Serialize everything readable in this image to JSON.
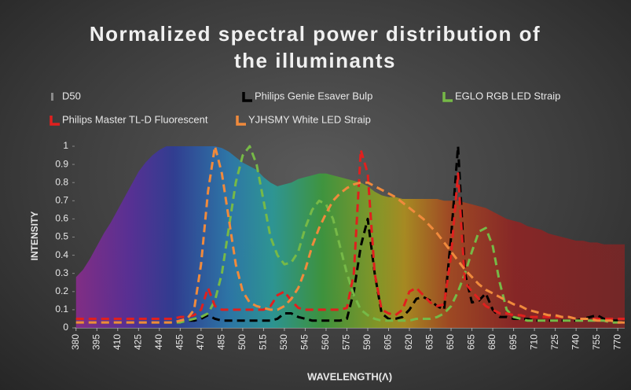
{
  "chart_data": {
    "type": "line",
    "title": "Normalized spectral power distribution of the illuminants",
    "xlabel": "WAVELENGTH(Λ)",
    "ylabel": "INTENSITY",
    "x": [
      380,
      385,
      390,
      395,
      400,
      405,
      410,
      415,
      420,
      425,
      430,
      435,
      440,
      445,
      450,
      455,
      460,
      465,
      470,
      475,
      480,
      485,
      490,
      495,
      500,
      505,
      510,
      515,
      520,
      525,
      530,
      535,
      540,
      545,
      550,
      555,
      560,
      565,
      570,
      575,
      580,
      585,
      590,
      595,
      600,
      605,
      610,
      615,
      620,
      625,
      630,
      635,
      640,
      645,
      650,
      655,
      660,
      665,
      670,
      675,
      680,
      685,
      690,
      695,
      700,
      705,
      710,
      715,
      720,
      725,
      730,
      735,
      740,
      745,
      750,
      755,
      760,
      765,
      770,
      775
    ],
    "xlim": [
      379,
      775
    ],
    "xticks": [
      380,
      395,
      410,
      425,
      440,
      455,
      470,
      485,
      500,
      515,
      530,
      545,
      560,
      575,
      590,
      605,
      620,
      635,
      650,
      665,
      680,
      695,
      710,
      725,
      740,
      755,
      770
    ],
    "ylim": [
      0,
      1
    ],
    "yticks": [
      0,
      0.1,
      0.2,
      0.3,
      0.4,
      0.5,
      0.6,
      0.7,
      0.8,
      0.9,
      1
    ],
    "grid": false,
    "series": [
      {
        "name": "D50",
        "color": "#8a8a8a",
        "kind": "area",
        "values": [
          0.28,
          0.32,
          0.38,
          0.45,
          0.52,
          0.58,
          0.65,
          0.72,
          0.79,
          0.86,
          0.91,
          0.95,
          0.98,
          1.0,
          1.0,
          1.0,
          1.0,
          1.0,
          1.0,
          1.0,
          1.0,
          0.99,
          0.97,
          0.94,
          0.91,
          0.89,
          0.87,
          0.83,
          0.8,
          0.78,
          0.79,
          0.8,
          0.82,
          0.83,
          0.84,
          0.85,
          0.85,
          0.84,
          0.83,
          0.82,
          0.81,
          0.8,
          0.78,
          0.75,
          0.73,
          0.72,
          0.72,
          0.71,
          0.71,
          0.71,
          0.71,
          0.71,
          0.71,
          0.7,
          0.7,
          0.7,
          0.69,
          0.68,
          0.67,
          0.66,
          0.64,
          0.62,
          0.6,
          0.59,
          0.58,
          0.56,
          0.55,
          0.54,
          0.52,
          0.51,
          0.5,
          0.49,
          0.48,
          0.48,
          0.47,
          0.47,
          0.46,
          0.46,
          0.46,
          0.46
        ]
      },
      {
        "name": "Philips Genie Esaver Bulp",
        "color": "#000000",
        "kind": "dashed",
        "values": [
          0.03,
          0.03,
          0.03,
          0.03,
          0.03,
          0.03,
          0.03,
          0.03,
          0.03,
          0.03,
          0.03,
          0.03,
          0.03,
          0.03,
          0.03,
          0.03,
          0.04,
          0.04,
          0.05,
          0.07,
          0.05,
          0.04,
          0.04,
          0.04,
          0.04,
          0.04,
          0.04,
          0.04,
          0.04,
          0.05,
          0.08,
          0.08,
          0.06,
          0.05,
          0.04,
          0.04,
          0.04,
          0.04,
          0.04,
          0.05,
          0.2,
          0.45,
          0.6,
          0.3,
          0.08,
          0.05,
          0.05,
          0.06,
          0.1,
          0.16,
          0.17,
          0.15,
          0.12,
          0.1,
          0.5,
          1.0,
          0.3,
          0.14,
          0.15,
          0.19,
          0.1,
          0.06,
          0.06,
          0.05,
          0.05,
          0.05,
          0.04,
          0.04,
          0.04,
          0.04,
          0.04,
          0.04,
          0.04,
          0.05,
          0.06,
          0.07,
          0.05,
          0.04,
          0.04,
          0.03
        ]
      },
      {
        "name": "EGLO RGB LED Straip",
        "color": "#76b947",
        "kind": "dashed",
        "values": [
          0.03,
          0.03,
          0.03,
          0.03,
          0.03,
          0.03,
          0.03,
          0.03,
          0.03,
          0.03,
          0.03,
          0.03,
          0.03,
          0.03,
          0.03,
          0.03,
          0.04,
          0.05,
          0.06,
          0.08,
          0.15,
          0.3,
          0.55,
          0.8,
          0.95,
          1.0,
          0.9,
          0.7,
          0.5,
          0.4,
          0.35,
          0.36,
          0.42,
          0.55,
          0.65,
          0.7,
          0.68,
          0.6,
          0.45,
          0.3,
          0.18,
          0.1,
          0.07,
          0.05,
          0.04,
          0.04,
          0.04,
          0.04,
          0.04,
          0.05,
          0.05,
          0.05,
          0.06,
          0.08,
          0.12,
          0.2,
          0.3,
          0.42,
          0.53,
          0.55,
          0.45,
          0.25,
          0.1,
          0.06,
          0.05,
          0.04,
          0.04,
          0.04,
          0.04,
          0.04,
          0.04,
          0.04,
          0.04,
          0.04,
          0.04,
          0.04,
          0.04,
          0.03,
          0.03,
          0.03
        ]
      },
      {
        "name": "Philips Master TL-D Fluorescent",
        "color": "#e0201e",
        "kind": "dashed",
        "values": [
          0.05,
          0.05,
          0.05,
          0.05,
          0.05,
          0.05,
          0.05,
          0.05,
          0.05,
          0.05,
          0.05,
          0.05,
          0.05,
          0.05,
          0.05,
          0.06,
          0.06,
          0.07,
          0.1,
          0.22,
          0.12,
          0.1,
          0.1,
          0.1,
          0.1,
          0.1,
          0.1,
          0.1,
          0.12,
          0.18,
          0.2,
          0.15,
          0.11,
          0.1,
          0.1,
          0.1,
          0.1,
          0.1,
          0.1,
          0.11,
          0.3,
          0.98,
          0.85,
          0.3,
          0.1,
          0.08,
          0.07,
          0.1,
          0.2,
          0.22,
          0.18,
          0.14,
          0.12,
          0.13,
          0.4,
          0.85,
          0.25,
          0.2,
          0.16,
          0.12,
          0.1,
          0.08,
          0.08,
          0.07,
          0.07,
          0.06,
          0.06,
          0.06,
          0.06,
          0.06,
          0.06,
          0.06,
          0.05,
          0.05,
          0.05,
          0.05,
          0.05,
          0.05,
          0.05,
          0.05
        ]
      },
      {
        "name": "YJHSMY White LED Straip",
        "color": "#f08a3c",
        "kind": "dashed",
        "values": [
          0.03,
          0.03,
          0.03,
          0.03,
          0.03,
          0.03,
          0.03,
          0.03,
          0.03,
          0.03,
          0.03,
          0.03,
          0.03,
          0.03,
          0.03,
          0.04,
          0.05,
          0.1,
          0.35,
          0.75,
          1.0,
          0.85,
          0.6,
          0.35,
          0.2,
          0.14,
          0.12,
          0.11,
          0.1,
          0.1,
          0.12,
          0.16,
          0.22,
          0.32,
          0.45,
          0.55,
          0.63,
          0.7,
          0.74,
          0.77,
          0.79,
          0.8,
          0.8,
          0.78,
          0.76,
          0.74,
          0.72,
          0.69,
          0.66,
          0.63,
          0.6,
          0.56,
          0.52,
          0.47,
          0.42,
          0.37,
          0.32,
          0.28,
          0.24,
          0.21,
          0.19,
          0.17,
          0.15,
          0.13,
          0.12,
          0.1,
          0.09,
          0.08,
          0.07,
          0.07,
          0.06,
          0.06,
          0.05,
          0.05,
          0.05,
          0.04,
          0.04,
          0.04,
          0.03,
          0.03
        ]
      }
    ]
  }
}
